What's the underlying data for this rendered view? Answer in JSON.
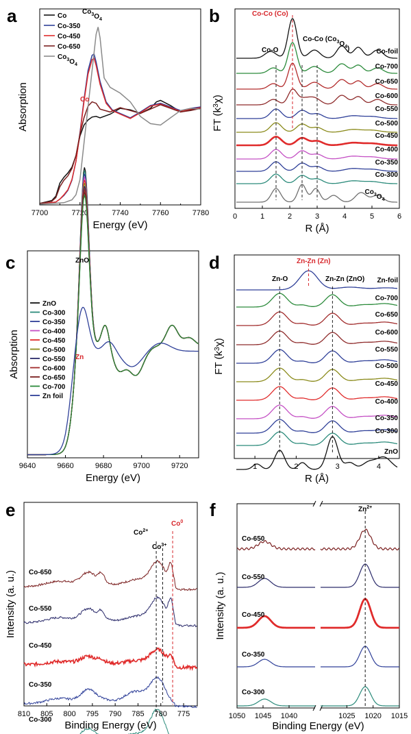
{
  "panels": [
    {
      "id": "a",
      "letter": "a",
      "xlabel": "Energy (eV)",
      "ylabel": "Absorption",
      "ticks": [
        "7700",
        "7720",
        "7740",
        "7760",
        "7780"
      ],
      "legend": [
        "Co",
        "Co-350",
        "Co-450",
        "Co-650",
        "Co3O4"
      ],
      "annotations": [
        "Co3O4",
        "Co"
      ]
    },
    {
      "id": "b",
      "letter": "b",
      "xlabel": "R (Å)",
      "ylabel": "FT (k3χ)",
      "ticks": [
        "0",
        "1",
        "2",
        "3",
        "4",
        "5",
        "6"
      ],
      "labels": [
        "Co-foil",
        "Co-700",
        "Co-650",
        "Co-600",
        "Co-550",
        "Co-500",
        "Co-450",
        "Co-400",
        "Co-350",
        "Co-300",
        "Co3O4"
      ],
      "annotations": [
        "Co-Co (Co)",
        "Co-O",
        "Co-Co (Co3O4)"
      ]
    },
    {
      "id": "c",
      "letter": "c",
      "xlabel": "Energy (eV)",
      "ylabel": "Absorption",
      "ticks": [
        "9640",
        "9660",
        "9680",
        "9700",
        "9720"
      ],
      "legend": [
        "ZnO",
        "Co-300",
        "Co-350",
        "Co-400",
        "Co-450",
        "Co-500",
        "Co-550",
        "Co-600",
        "Co-650",
        "Co-700",
        "Zn foil"
      ],
      "annotations": [
        "ZnO",
        "Zn"
      ]
    },
    {
      "id": "d",
      "letter": "d",
      "xlabel": "R (Å)",
      "ylabel": "FT (k3χ)",
      "ticks": [
        "1",
        "2",
        "3",
        "4"
      ],
      "labels": [
        "Zn-foil",
        "Co-700",
        "Co-650",
        "Co-600",
        "Co-550",
        "Co-500",
        "Co-450",
        "Co-400",
        "Co-350",
        "Co-300",
        "ZnO"
      ],
      "annotations": [
        "Zn-Zn (Zn)",
        "Zn-O",
        "Zn-Zn (ZnO)"
      ]
    },
    {
      "id": "e",
      "letter": "e",
      "xlabel": "Binding Energy (eV)",
      "ylabel": "Intensity (a. u.)",
      "ticks": [
        "810",
        "805",
        "800",
        "795",
        "790",
        "785",
        "780",
        "775"
      ],
      "labels": [
        "Co-650",
        "Co-550",
        "Co-450",
        "Co-350",
        "Co-300"
      ],
      "annotations": [
        "Co2+",
        "Co3+",
        "Co0"
      ]
    },
    {
      "id": "f",
      "letter": "f",
      "xlabel": "Binding Energy (eV)",
      "ylabel": "Intensity (a. u.)",
      "ticks": [
        "1050",
        "1045",
        "1040",
        "1025",
        "1020",
        "1015"
      ],
      "labels": [
        "Co-650",
        "Co-550",
        "Co-450",
        "Co-350",
        "Co-300"
      ],
      "annotations": [
        "Zn2+"
      ]
    }
  ],
  "chart_data": [
    {
      "panel": "a",
      "type": "line",
      "xlabel": "Energy (eV)",
      "ylabel": "Absorption",
      "xlim": [
        7700,
        7780
      ],
      "series": [
        {
          "name": "Co",
          "color": "#111111",
          "x": [
            7700,
            7706,
            7708,
            7710,
            7712,
            7714,
            7716,
            7718,
            7720,
            7722,
            7724,
            7726,
            7728,
            7730,
            7735,
            7740,
            7745,
            7750,
            7755,
            7758,
            7760,
            7765,
            7770,
            7775,
            7780
          ],
          "y": [
            0.02,
            0.06,
            0.12,
            0.3,
            0.38,
            0.44,
            0.52,
            0.68,
            0.95,
            1.1,
            1.17,
            1.21,
            1.22,
            1.2,
            1.25,
            1.33,
            1.31,
            1.26,
            1.33,
            1.42,
            1.44,
            1.37,
            1.28,
            1.31,
            1.34
          ]
        },
        {
          "name": "Co-350",
          "color": "#2e3f98",
          "x": [
            7700,
            7708,
            7710,
            7712,
            7714,
            7716,
            7718,
            7720,
            7722,
            7724,
            7726,
            7727,
            7728,
            7730,
            7733,
            7736,
            7740,
            7745,
            7750,
            7755,
            7760,
            7765,
            7770,
            7775,
            7780
          ],
          "y": [
            0.01,
            0.04,
            0.08,
            0.13,
            0.2,
            0.34,
            0.6,
            1.0,
            1.45,
            1.85,
            2.06,
            2.08,
            1.97,
            1.7,
            1.42,
            1.31,
            1.26,
            1.2,
            1.28,
            1.37,
            1.4,
            1.35,
            1.3,
            1.33,
            1.35
          ]
        },
        {
          "name": "Co-450",
          "color": "#e02b2b",
          "x": [
            7700,
            7708,
            7710,
            7712,
            7714,
            7716,
            7718,
            7720,
            7722,
            7724,
            7726,
            7727,
            7728,
            7730,
            7733,
            7736,
            7740,
            7745,
            7750,
            7755,
            7760,
            7765,
            7770,
            7775,
            7780
          ],
          "y": [
            0.01,
            0.04,
            0.08,
            0.14,
            0.21,
            0.35,
            0.6,
            0.98,
            1.42,
            1.8,
            2.0,
            2.02,
            1.92,
            1.66,
            1.4,
            1.3,
            1.25,
            1.19,
            1.27,
            1.36,
            1.39,
            1.34,
            1.29,
            1.32,
            1.34
          ]
        },
        {
          "name": "Co-650",
          "color": "#7a1f1f",
          "x": [
            7700,
            7706,
            7708,
            7710,
            7712,
            7714,
            7716,
            7718,
            7720,
            7722,
            7724,
            7726,
            7728,
            7730,
            7735,
            7740,
            7745,
            7750,
            7755,
            7760,
            7765,
            7770,
            7775,
            7780
          ],
          "y": [
            0.02,
            0.05,
            0.1,
            0.25,
            0.34,
            0.4,
            0.5,
            0.68,
            0.98,
            1.2,
            1.36,
            1.42,
            1.4,
            1.32,
            1.28,
            1.34,
            1.3,
            1.26,
            1.32,
            1.38,
            1.33,
            1.28,
            1.3,
            1.33
          ]
        },
        {
          "name": "Co3O4",
          "color": "#8a8a8a",
          "x": [
            7700,
            7712,
            7716,
            7718,
            7720,
            7722,
            7724,
            7726,
            7728,
            7729,
            7730,
            7732,
            7735,
            7740,
            7745,
            7750,
            7755,
            7760,
            7765,
            7770,
            7775,
            7780
          ],
          "y": [
            0.01,
            0.03,
            0.07,
            0.14,
            0.35,
            0.85,
            1.35,
            1.85,
            2.35,
            2.45,
            2.3,
            1.75,
            1.62,
            1.54,
            1.42,
            1.22,
            1.12,
            1.1,
            1.2,
            1.3,
            1.33,
            1.32
          ]
        }
      ],
      "annotations": [
        "Co3O4",
        "Co"
      ]
    },
    {
      "panel": "b",
      "type": "line",
      "xlabel": "R (Å)",
      "ylabel": "FT (k3χ)",
      "xlim": [
        0,
        6
      ],
      "series_labels": [
        "Co-foil",
        "Co-700",
        "Co-650",
        "Co-600",
        "Co-550",
        "Co-500",
        "Co-450",
        "Co-400",
        "Co-350",
        "Co-300",
        "Co3O4"
      ],
      "peak_lines_R": [
        1.5,
        2.1,
        2.45,
        3.0
      ],
      "annotations": [
        "Co-Co (Co)",
        "Co-O",
        "Co-Co (Co3O4)"
      ]
    },
    {
      "panel": "c",
      "type": "line",
      "xlabel": "Energy (eV)",
      "ylabel": "Absorption",
      "xlim": [
        9640,
        9730
      ],
      "series_labels": [
        "ZnO",
        "Co-300",
        "Co-350",
        "Co-400",
        "Co-450",
        "Co-500",
        "Co-550",
        "Co-600",
        "Co-650",
        "Co-700",
        "Zn foil"
      ],
      "annotations": [
        "ZnO",
        "Zn"
      ]
    },
    {
      "panel": "d",
      "type": "line",
      "xlabel": "R (Å)",
      "ylabel": "FT (k3χ)",
      "xlim": [
        0.5,
        4.5
      ],
      "series_labels": [
        "Zn-foil",
        "Co-700",
        "Co-650",
        "Co-600",
        "Co-550",
        "Co-500",
        "Co-450",
        "Co-400",
        "Co-350",
        "Co-300",
        "ZnO"
      ],
      "peak_lines_R": [
        1.6,
        2.3,
        2.9
      ],
      "annotations": [
        "Zn-Zn (Zn)",
        "Zn-O",
        "Zn-Zn (ZnO)"
      ]
    },
    {
      "panel": "e",
      "type": "line",
      "xlabel": "Binding Energy (eV)",
      "ylabel": "Intensity (a. u.)",
      "xlim": [
        810,
        772
      ],
      "series_labels": [
        "Co-650",
        "Co-550",
        "Co-450",
        "Co-350",
        "Co-300"
      ],
      "peak_lines_eV": [
        780.8,
        779.6,
        777.4
      ],
      "annotations": [
        "Co2+",
        "Co3+",
        "Co0"
      ]
    },
    {
      "panel": "f",
      "type": "line",
      "xlabel": "Binding Energy (eV)",
      "ylabel": "Intensity (a. u.)",
      "xlim": [
        1050,
        1015
      ],
      "series_labels": [
        "Co-650",
        "Co-550",
        "Co-450",
        "Co-350",
        "Co-300"
      ],
      "peak_lines_eV": [
        1021.5
      ],
      "annotations": [
        "Zn2+"
      ]
    }
  ]
}
